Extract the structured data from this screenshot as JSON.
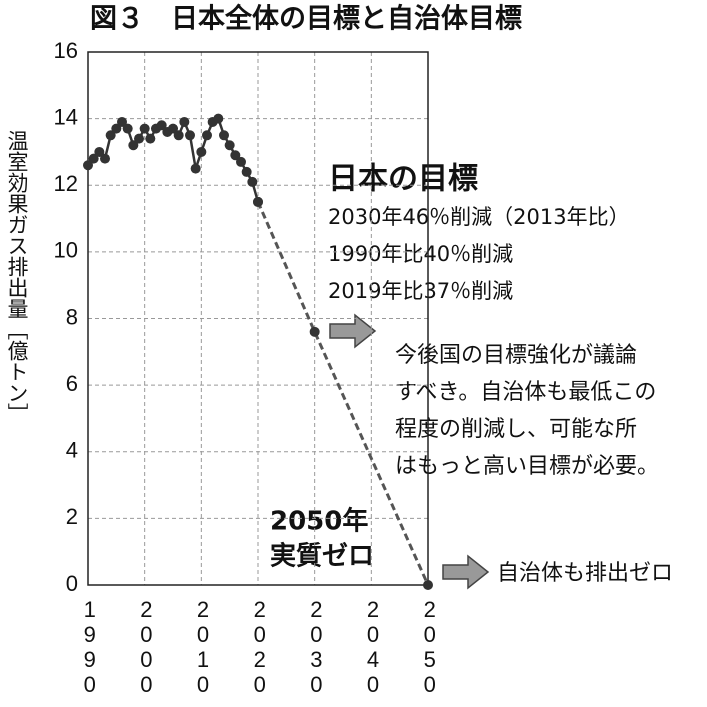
{
  "chart_data": {
    "type": "line",
    "title": "図３　日本全体の目標と自治体目標",
    "y_label": "温室効果ガス排出量［億トン］",
    "x": [
      1990,
      1991,
      1992,
      1993,
      1994,
      1995,
      1996,
      1997,
      1998,
      1999,
      2000,
      2001,
      2002,
      2003,
      2004,
      2005,
      2006,
      2007,
      2008,
      2009,
      2010,
      2011,
      2012,
      2013,
      2014,
      2015,
      2016,
      2017,
      2018,
      2019,
      2020,
      2030,
      2050
    ],
    "series": [
      {
        "color": "#333333",
        "style": "solid",
        "values": [
          12.6,
          12.8,
          13.0,
          12.8,
          13.5,
          13.7,
          13.9,
          13.7,
          13.2,
          13.4,
          13.7,
          13.4,
          13.7,
          13.8,
          13.6,
          13.7,
          13.5,
          13.9,
          13.5,
          12.5,
          13.0,
          13.5,
          13.9,
          14.0,
          13.5,
          13.2,
          12.9,
          12.7,
          12.4,
          12.1,
          11.5,
          null,
          null
        ]
      },
      {
        "color": "#555555",
        "style": "dashed",
        "values": [
          null,
          null,
          null,
          null,
          null,
          null,
          null,
          null,
          null,
          null,
          null,
          null,
          null,
          null,
          null,
          null,
          null,
          null,
          null,
          null,
          null,
          null,
          null,
          null,
          null,
          null,
          null,
          null,
          null,
          null,
          11.5,
          7.6,
          0
        ]
      }
    ],
    "xlim": [
      1990,
      2050
    ],
    "xticks": [
      1990,
      2000,
      2010,
      2020,
      2030,
      2040,
      2050
    ],
    "ylim": [
      0,
      16
    ],
    "yticks": [
      0,
      2,
      4,
      6,
      8,
      10,
      12,
      14,
      16
    ],
    "grid": true,
    "annotations": {
      "target_heading": "日本の目標",
      "target_lines": [
        "2030年46％削減（2013年比）",
        "1990年比40％削減",
        "2019年比37％削減"
      ],
      "comment_lines": [
        "今後国の目標強化が議論",
        "すべき。自治体も最低この",
        "程度の削減し、可能な所",
        "はもっと高い目標が必要。"
      ],
      "zero_lines": [
        "2050年",
        "実質ゼロ"
      ],
      "local_note": "自治体も排出ゼロ"
    }
  }
}
